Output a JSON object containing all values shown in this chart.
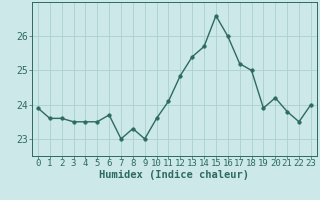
{
  "x": [
    0,
    1,
    2,
    3,
    4,
    5,
    6,
    7,
    8,
    9,
    10,
    11,
    12,
    13,
    14,
    15,
    16,
    17,
    18,
    19,
    20,
    21,
    22,
    23
  ],
  "y": [
    23.9,
    23.6,
    23.6,
    23.5,
    23.5,
    23.5,
    23.7,
    23.0,
    23.3,
    23.0,
    23.6,
    24.1,
    24.85,
    25.4,
    25.7,
    26.6,
    26.0,
    25.2,
    25.0,
    23.9,
    24.2,
    23.8,
    23.5,
    24.0
  ],
  "line_color": "#2d6b5e",
  "marker_color": "#2d6b5e",
  "bg_color": "#cce8e8",
  "grid_color": "#aad0d0",
  "xlabel": "Humidex (Indice chaleur)",
  "ylim": [
    22.5,
    27.0
  ],
  "yticks": [
    23,
    24,
    25,
    26
  ],
  "xtick_labels": [
    "0",
    "1",
    "2",
    "3",
    "4",
    "5",
    "6",
    "7",
    "8",
    "9",
    "10",
    "11",
    "12",
    "13",
    "14",
    "15",
    "16",
    "17",
    "18",
    "19",
    "20",
    "21",
    "22",
    "23"
  ],
  "xlabel_fontsize": 7.5,
  "tick_fontsize": 6.5,
  "line_width": 1.0,
  "marker_size": 2.5
}
